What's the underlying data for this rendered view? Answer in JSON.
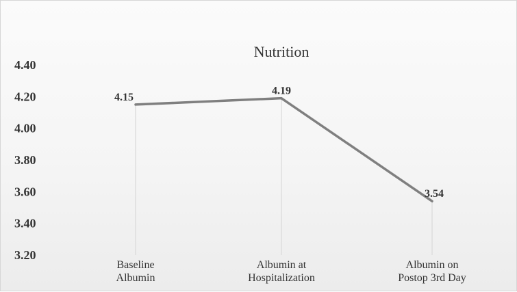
{
  "chart_data": {
    "type": "line",
    "title": "Nutrition",
    "categories": [
      [
        "Baseline",
        "Albumin"
      ],
      [
        "Albumin at",
        "Hospitalization"
      ],
      [
        "Albumin on",
        "Postop 3rd Day"
      ]
    ],
    "series": [
      {
        "values": [
          4.15,
          4.19,
          3.54
        ],
        "color": "#7f7f7f"
      }
    ],
    "data_labels": [
      "4.15",
      "4.19",
      "3.54"
    ],
    "y_ticks": [
      "4.40",
      "4.20",
      "4.00",
      "3.80",
      "3.60",
      "3.40",
      "3.20"
    ],
    "ylim": [
      3.2,
      4.4
    ],
    "grid": "vertical-drop-lines",
    "legend": "none"
  }
}
